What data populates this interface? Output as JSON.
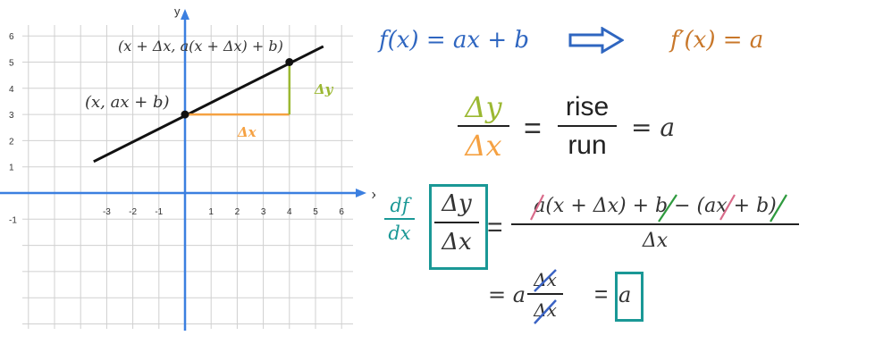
{
  "graph": {
    "x_axis_label": "x",
    "y_axis_label": "y",
    "x_ticks": [
      "-3",
      "-2",
      "-1",
      "1",
      "2",
      "3",
      "4",
      "5",
      "6"
    ],
    "y_ticks": [
      "6",
      "5",
      "4",
      "3",
      "2",
      "1",
      "-1"
    ],
    "line_points": [
      [
        -3.5,
        1.2
      ],
      [
        5.3,
        5.6
      ]
    ],
    "point_a": [
      0,
      3
    ],
    "point_b": [
      4,
      5
    ],
    "label_point_a": "(x, ax + b)",
    "label_point_b": "(x + Δx, a(x + Δx) + b)",
    "label_dx": "Δx",
    "label_dy": "Δy",
    "colors": {
      "axis": "#3b7fe0",
      "line": "#111111",
      "dx": "#f5a142",
      "dy": "#9bb832",
      "grid": "#d0d0d0"
    }
  },
  "eq1": {
    "lhs": "f(x) = ax + b",
    "rhs": "f′(x) = a",
    "lhs_color": "#2f66c0",
    "rhs_color": "#c8772a",
    "arrow_color": "#2f66c0"
  },
  "eq2": {
    "num": "Δy",
    "den": "Δx",
    "eq": "=",
    "rise": "rise",
    "run": "run",
    "result": "= a"
  },
  "eq3": {
    "df": "df",
    "dx": "dx",
    "num": "Δy",
    "den": "Δx",
    "eq": "=",
    "rhs_num": "a(x + Δx) + b − (ax + b)",
    "rhs_den": "Δx",
    "line2_prefix": "= a",
    "line2_num": "Δx",
    "line2_den": "Δx",
    "line2_eq": "=",
    "result": "a",
    "teal": "#1a9896",
    "slash_red": "#d96b8a",
    "slash_green": "#2e9a3e",
    "slash_blue": "#3b63c4"
  }
}
